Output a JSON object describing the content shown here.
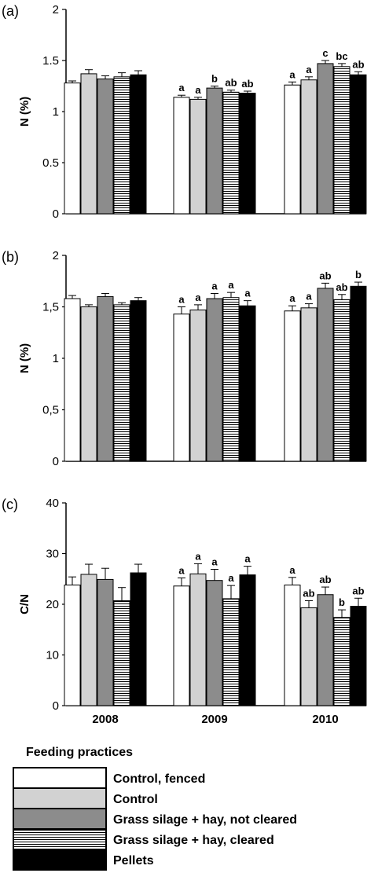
{
  "chart_data": [
    {
      "type": "bar",
      "panel_label": "(a)",
      "ylabel": "N  (%)",
      "ylim": [
        0,
        2
      ],
      "yticks": [
        "0",
        "0.5",
        "1",
        "1.5",
        "2"
      ],
      "categories": [
        "2008",
        "2009",
        "2010"
      ],
      "series": [
        {
          "name": "Control, fenced",
          "values": [
            1.28,
            1.14,
            1.26
          ],
          "errors": [
            0.02,
            0.02,
            0.03
          ],
          "letters": [
            "",
            "a",
            "a"
          ]
        },
        {
          "name": "Control",
          "values": [
            1.37,
            1.12,
            1.31
          ],
          "errors": [
            0.04,
            0.02,
            0.03
          ],
          "letters": [
            "",
            "a",
            "a"
          ]
        },
        {
          "name": "Grass silage + hay, not cleared",
          "values": [
            1.32,
            1.23,
            1.47
          ],
          "errors": [
            0.03,
            0.02,
            0.03
          ],
          "letters": [
            "",
            "b",
            "c"
          ]
        },
        {
          "name": "Grass silage + hay, cleared",
          "values": [
            1.34,
            1.19,
            1.44
          ],
          "errors": [
            0.04,
            0.02,
            0.03
          ],
          "letters": [
            "",
            "ab",
            "bc"
          ]
        },
        {
          "name": "Pellets",
          "values": [
            1.36,
            1.18,
            1.36
          ],
          "errors": [
            0.04,
            0.02,
            0.03
          ],
          "letters": [
            "",
            "ab",
            "ab"
          ]
        }
      ]
    },
    {
      "type": "bar",
      "panel_label": "(b)",
      "ylabel": "N  (%)",
      "ylim": [
        0,
        2
      ],
      "yticks": [
        "0",
        "0,5",
        "1",
        "1,5",
        "2"
      ],
      "categories": [
        "2008",
        "2009",
        "2010"
      ],
      "series": [
        {
          "name": "Control, fenced",
          "values": [
            1.58,
            1.43,
            1.46
          ],
          "errors": [
            0.03,
            0.07,
            0.05
          ],
          "letters": [
            "",
            "a",
            "a"
          ]
        },
        {
          "name": "Control",
          "values": [
            1.5,
            1.47,
            1.49
          ],
          "errors": [
            0.02,
            0.05,
            0.04
          ],
          "letters": [
            "",
            "a",
            "a"
          ]
        },
        {
          "name": "Grass silage + hay, not cleared",
          "values": [
            1.6,
            1.58,
            1.68
          ],
          "errors": [
            0.03,
            0.05,
            0.05
          ],
          "letters": [
            "",
            "a",
            "ab"
          ]
        },
        {
          "name": "Grass silage + hay, cleared",
          "values": [
            1.52,
            1.59,
            1.57
          ],
          "errors": [
            0.02,
            0.05,
            0.05
          ],
          "letters": [
            "",
            "a",
            "ab"
          ]
        },
        {
          "name": "Pellets",
          "values": [
            1.56,
            1.51,
            1.7
          ],
          "errors": [
            0.03,
            0.05,
            0.04
          ],
          "letters": [
            "",
            "a",
            "b"
          ]
        }
      ]
    },
    {
      "type": "bar",
      "panel_label": "(c)",
      "ylabel": "C/N",
      "ylim": [
        0,
        40
      ],
      "yticks": [
        "0",
        "10",
        "20",
        "30",
        "40"
      ],
      "categories": [
        "2008",
        "2009",
        "2010"
      ],
      "series": [
        {
          "name": "Control, fenced",
          "values": [
            23.8,
            23.6,
            23.8
          ],
          "errors": [
            1.6,
            1.6,
            1.5
          ],
          "letters": [
            "",
            "a",
            "a"
          ]
        },
        {
          "name": "Control",
          "values": [
            25.9,
            26.0,
            19.3
          ],
          "errors": [
            2.0,
            2.0,
            1.4
          ],
          "letters": [
            "",
            "a",
            "ab"
          ]
        },
        {
          "name": "Grass silage + hay, not cleared",
          "values": [
            24.9,
            24.7,
            21.9
          ],
          "errors": [
            2.2,
            2.2,
            1.5
          ],
          "letters": [
            "",
            "a",
            "ab"
          ]
        },
        {
          "name": "Grass silage + hay, cleared",
          "values": [
            20.7,
            21.1,
            17.4
          ],
          "errors": [
            2.6,
            2.6,
            1.5
          ],
          "letters": [
            "",
            "a",
            "b"
          ]
        },
        {
          "name": "Pellets",
          "values": [
            26.2,
            25.8,
            19.6
          ],
          "errors": [
            1.7,
            1.7,
            1.6
          ],
          "letters": [
            "",
            "a",
            "ab"
          ]
        }
      ]
    }
  ],
  "legend": {
    "title": "Feeding practices",
    "items": [
      {
        "label": "Control, fenced",
        "fill": "white"
      },
      {
        "label": "Control",
        "fill": "lightgrey"
      },
      {
        "label": "Grass silage + hay, not cleared",
        "fill": "darkgrey"
      },
      {
        "label": "Grass silage + hay, cleared",
        "fill": "hatched"
      },
      {
        "label": "Pellets",
        "fill": "black"
      }
    ]
  },
  "colors": {
    "white": "#ffffff",
    "lightgrey": "#d2d2d2",
    "darkgrey": "#8c8c8c",
    "black": "#000000",
    "line": "#000000"
  }
}
